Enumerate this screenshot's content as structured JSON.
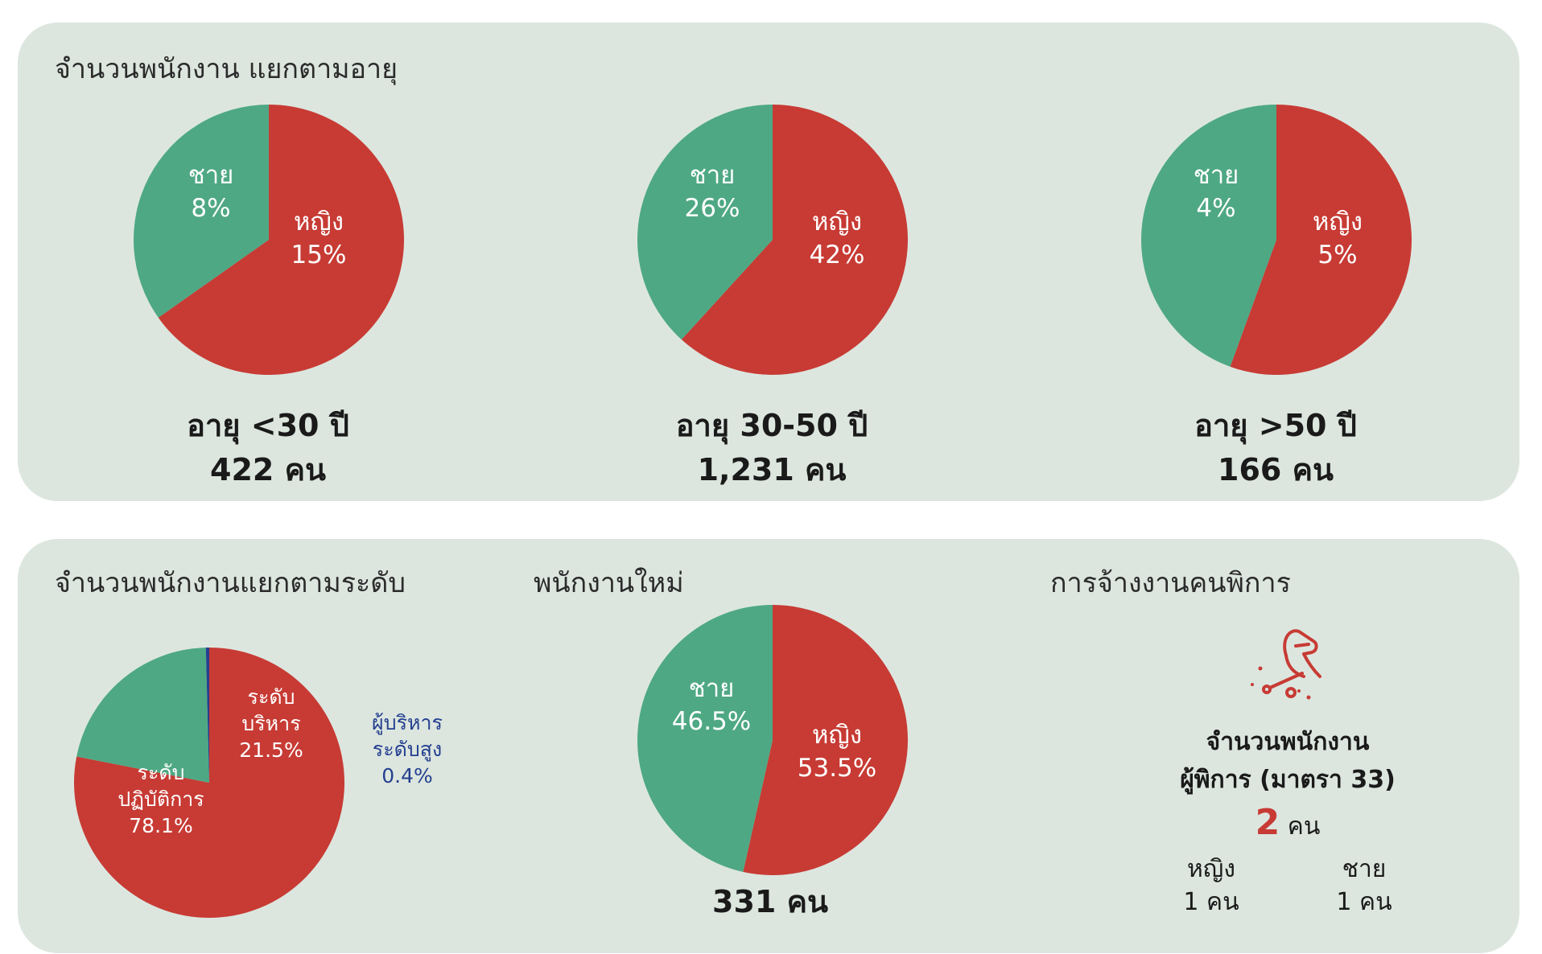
{
  "colors": {
    "female": "#c73b34",
    "male": "#4ea884",
    "executive": "#243f8f",
    "panel": "#dce6df"
  },
  "age_section": {
    "title": "จำนวนพนักงาน แยกตามอายุ",
    "groups": [
      {
        "caption": "อายุ <30 ปี",
        "count": "422 คน"
      },
      {
        "caption": "อายุ 30-50 ปี",
        "count": "1,231 คน"
      },
      {
        "caption": "อายุ >50 ปี",
        "count": "166 คน"
      }
    ]
  },
  "level_section": {
    "title": "จำนวนพนักงานแยกตามระดับ"
  },
  "new_section": {
    "title": "พนักงานใหม่",
    "count": "331 คน"
  },
  "disability_section": {
    "title": "การจ้างงานคนพิการ",
    "icon": "wheelchair-icon",
    "label_line1": "จำนวนพนักงาน",
    "label_line2": "ผู้พิการ (มาตรา 33)",
    "count_number": "2",
    "count_unit": "คน",
    "female_label": "หญิง",
    "female_count": "1 คน",
    "male_label": "ชาย",
    "male_count": "1 คน"
  },
  "chart_data": [
    {
      "type": "pie",
      "title": "อายุ <30 ปี",
      "slices": [
        {
          "label": "หญิง",
          "value": 15,
          "display": "15%",
          "color": "#c73b34"
        },
        {
          "label": "ชาย",
          "value": 8,
          "display": "8%",
          "color": "#4ea884"
        }
      ]
    },
    {
      "type": "pie",
      "title": "อายุ 30-50 ปี",
      "slices": [
        {
          "label": "หญิง",
          "value": 42,
          "display": "42%",
          "color": "#c73b34"
        },
        {
          "label": "ชาย",
          "value": 26,
          "display": "26%",
          "color": "#4ea884"
        }
      ]
    },
    {
      "type": "pie",
      "title": "อายุ >50 ปี",
      "slices": [
        {
          "label": "หญิง",
          "value": 5,
          "display": "5%",
          "color": "#c73b34"
        },
        {
          "label": "ชาย",
          "value": 4,
          "display": "4%",
          "color": "#4ea884"
        }
      ]
    },
    {
      "type": "pie",
      "title": "จำนวนพนักงานแยกตามระดับ",
      "slices": [
        {
          "label": "ระดับ ปฏิบัติการ",
          "value": 78.1,
          "display": "78.1%",
          "color": "#c73b34"
        },
        {
          "label": "ระดับ บริหาร",
          "value": 21.5,
          "display": "21.5%",
          "color": "#4ea884"
        },
        {
          "label": "ผู้บริหาร ระดับสูง",
          "value": 0.4,
          "display": "0.4%",
          "color": "#243f8f"
        }
      ]
    },
    {
      "type": "pie",
      "title": "พนักงานใหม่",
      "slices": [
        {
          "label": "หญิง",
          "value": 53.5,
          "display": "53.5%",
          "color": "#c73b34"
        },
        {
          "label": "ชาย",
          "value": 46.5,
          "display": "46.5%",
          "color": "#4ea884"
        }
      ]
    }
  ]
}
